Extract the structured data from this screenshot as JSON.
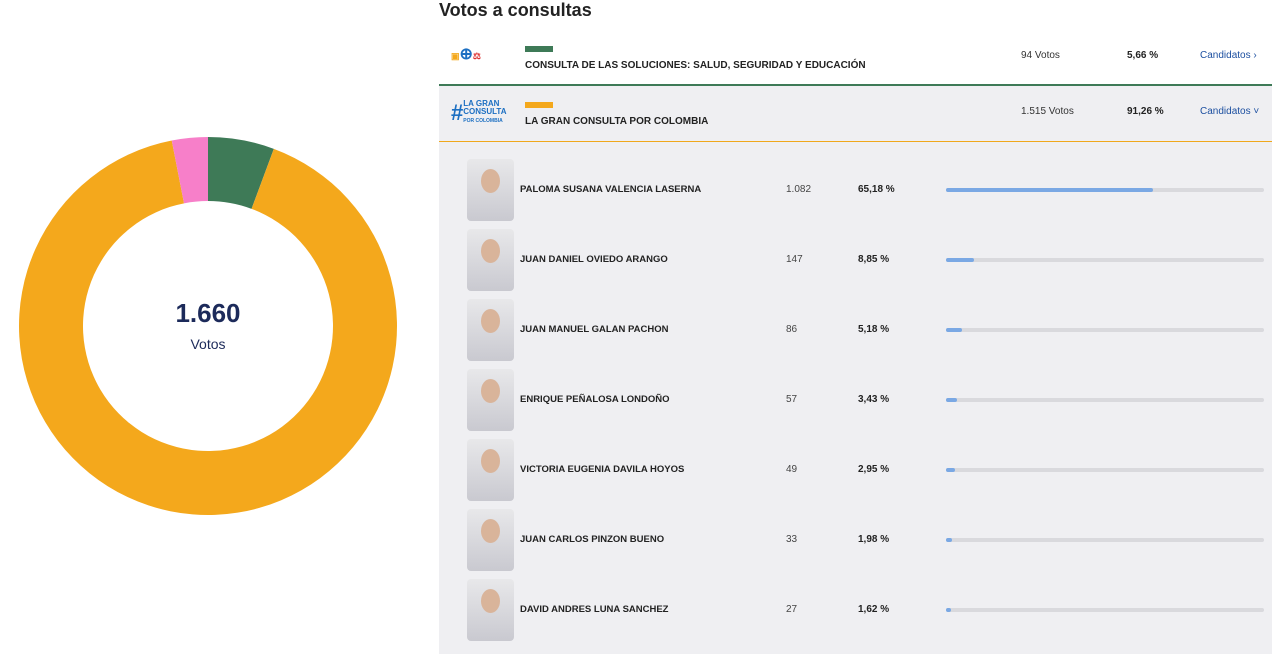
{
  "title": "Votos a consultas",
  "donut": {
    "total": "1.660",
    "total_label": "Votos"
  },
  "chart_data": {
    "type": "pie",
    "values": [
      94,
      1515,
      51
    ],
    "colors": [
      "#3e7a57",
      "#f4a81c",
      "#f77fc9"
    ]
  },
  "consultas": [
    {
      "name": "CONSULTA DE LAS SOLUCIONES: SALUD, SEGURIDAD Y EDUCACIÓN",
      "votes": "94 Votos",
      "pct": "5,66 %",
      "link": "Candidatos ›",
      "color": "#3e7a57"
    },
    {
      "name": "LA GRAN CONSULTA POR COLOMBIA",
      "votes": "1.515 Votos",
      "pct": "91,26 %",
      "link": "Candidatos ˅",
      "color": "#f4a81c",
      "logo": "#LA GRAN CONSULTA POR COLOMBIA"
    }
  ],
  "candidates": [
    {
      "name": "PALOMA SUSANA VALENCIA LASERNA",
      "votes": "1.082",
      "pct": "65,18 %",
      "share": 65.18
    },
    {
      "name": "JUAN DANIEL OVIEDO ARANGO",
      "votes": "147",
      "pct": "8,85 %",
      "share": 8.85
    },
    {
      "name": "JUAN MANUEL GALAN PACHON",
      "votes": "86",
      "pct": "5,18 %",
      "share": 5.18
    },
    {
      "name": "ENRIQUE PEÑALOSA LONDOÑO",
      "votes": "57",
      "pct": "3,43 %",
      "share": 3.43
    },
    {
      "name": "VICTORIA EUGENIA DAVILA HOYOS",
      "votes": "49",
      "pct": "2,95 %",
      "share": 2.95
    },
    {
      "name": "JUAN CARLOS PINZON BUENO",
      "votes": "33",
      "pct": "1,98 %",
      "share": 1.98
    },
    {
      "name": "DAVID ANDRES LUNA SANCHEZ",
      "votes": "27",
      "pct": "1,62 %",
      "share": 1.62
    }
  ]
}
